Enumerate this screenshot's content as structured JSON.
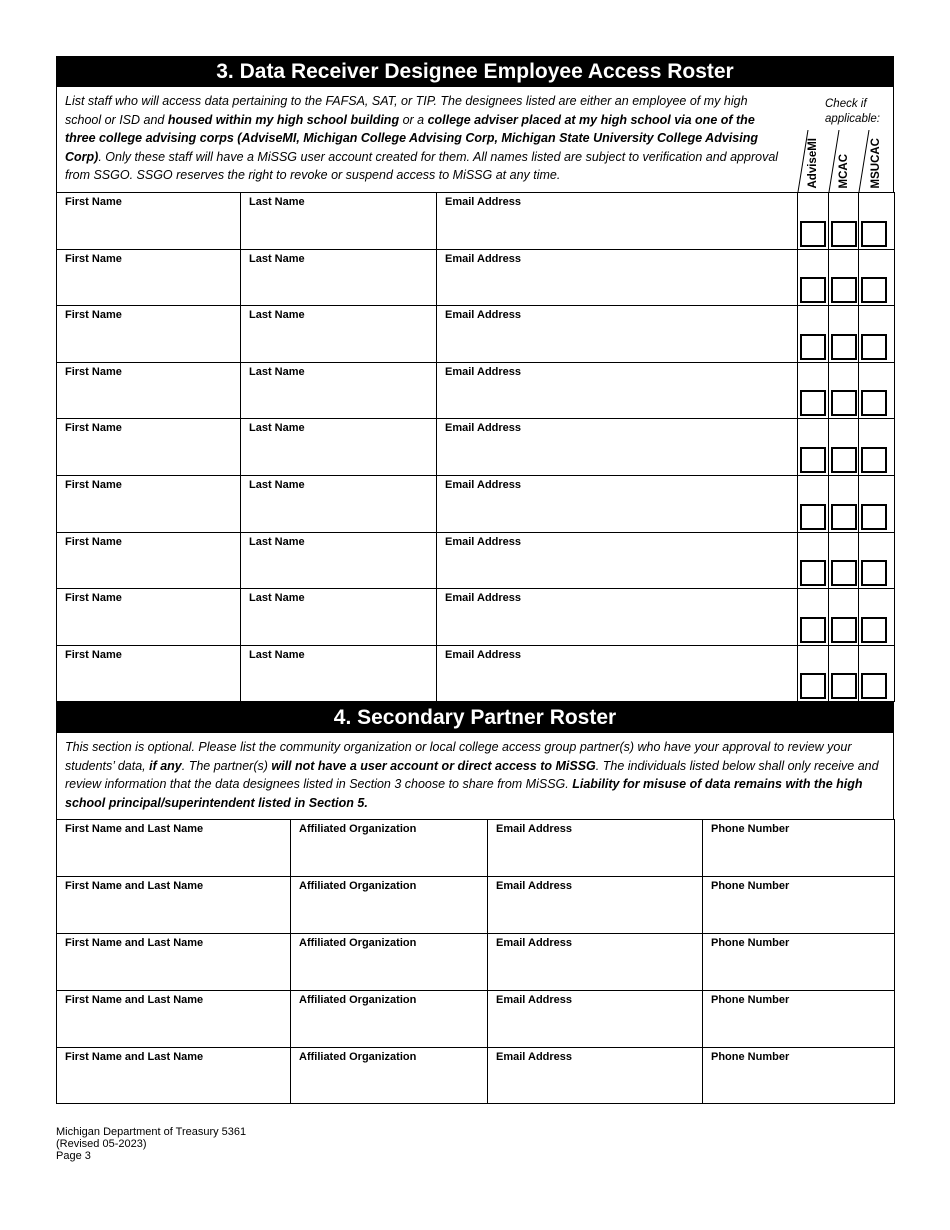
{
  "section3": {
    "title": "3. Data Receiver Designee Employee Access Roster",
    "intro": [
      {
        "text": "List staff who will access data pertaining to the FAFSA, SAT, or TIP. The designees listed are either an employee of my high school or ISD and ",
        "bold": false
      },
      {
        "text": "housed within my high school building",
        "bold": true
      },
      {
        "text": " or a ",
        "bold": false
      },
      {
        "text": "college adviser placed at my high school via one of the three college advising corps (AdviseMI, Michigan College Advising Corp, Michigan State University College Advising Corp)",
        "bold": true
      },
      {
        "text": ". Only these staff will have a MiSSG user account created for them. All names listed are subject to verification and approval from SSGO. SSGO reserves the right to revoke or suspend access to MiSSG at any time.",
        "bold": false
      }
    ],
    "check_label": "Check if applicable:",
    "check_columns": [
      "AdviseMI",
      "MCAC",
      "MSUCAC"
    ],
    "field_labels": [
      "First Name",
      "Last Name",
      "Email Address"
    ],
    "row_count": 9
  },
  "section4": {
    "title": "4. Secondary Partner Roster",
    "intro": [
      {
        "text": "This section is optional. Please list the community organization or local college access group partner(s) who have your approval to review your students’ data, ",
        "bold": false
      },
      {
        "text": "if any",
        "bold": true
      },
      {
        "text": ". The partner(s) ",
        "bold": false
      },
      {
        "text": "will not have a user account or direct access to MiSSG",
        "bold": true
      },
      {
        "text": ". The individuals listed below shall only receive and review information that the data designees listed in Section 3 choose to share from MiSSG. ",
        "bold": false
      },
      {
        "text": "Liability for misuse of data remains with the high school principal/superintendent listed in Section 5.",
        "bold": true
      }
    ],
    "field_labels": [
      "First Name and Last Name",
      "Affiliated Organization",
      "Email Address",
      "Phone Number"
    ],
    "row_count": 5
  },
  "footer": {
    "line1": "Michigan Department of Treasury 5361",
    "line2": "(Revised 05-2023)",
    "line3": "Page 3"
  }
}
